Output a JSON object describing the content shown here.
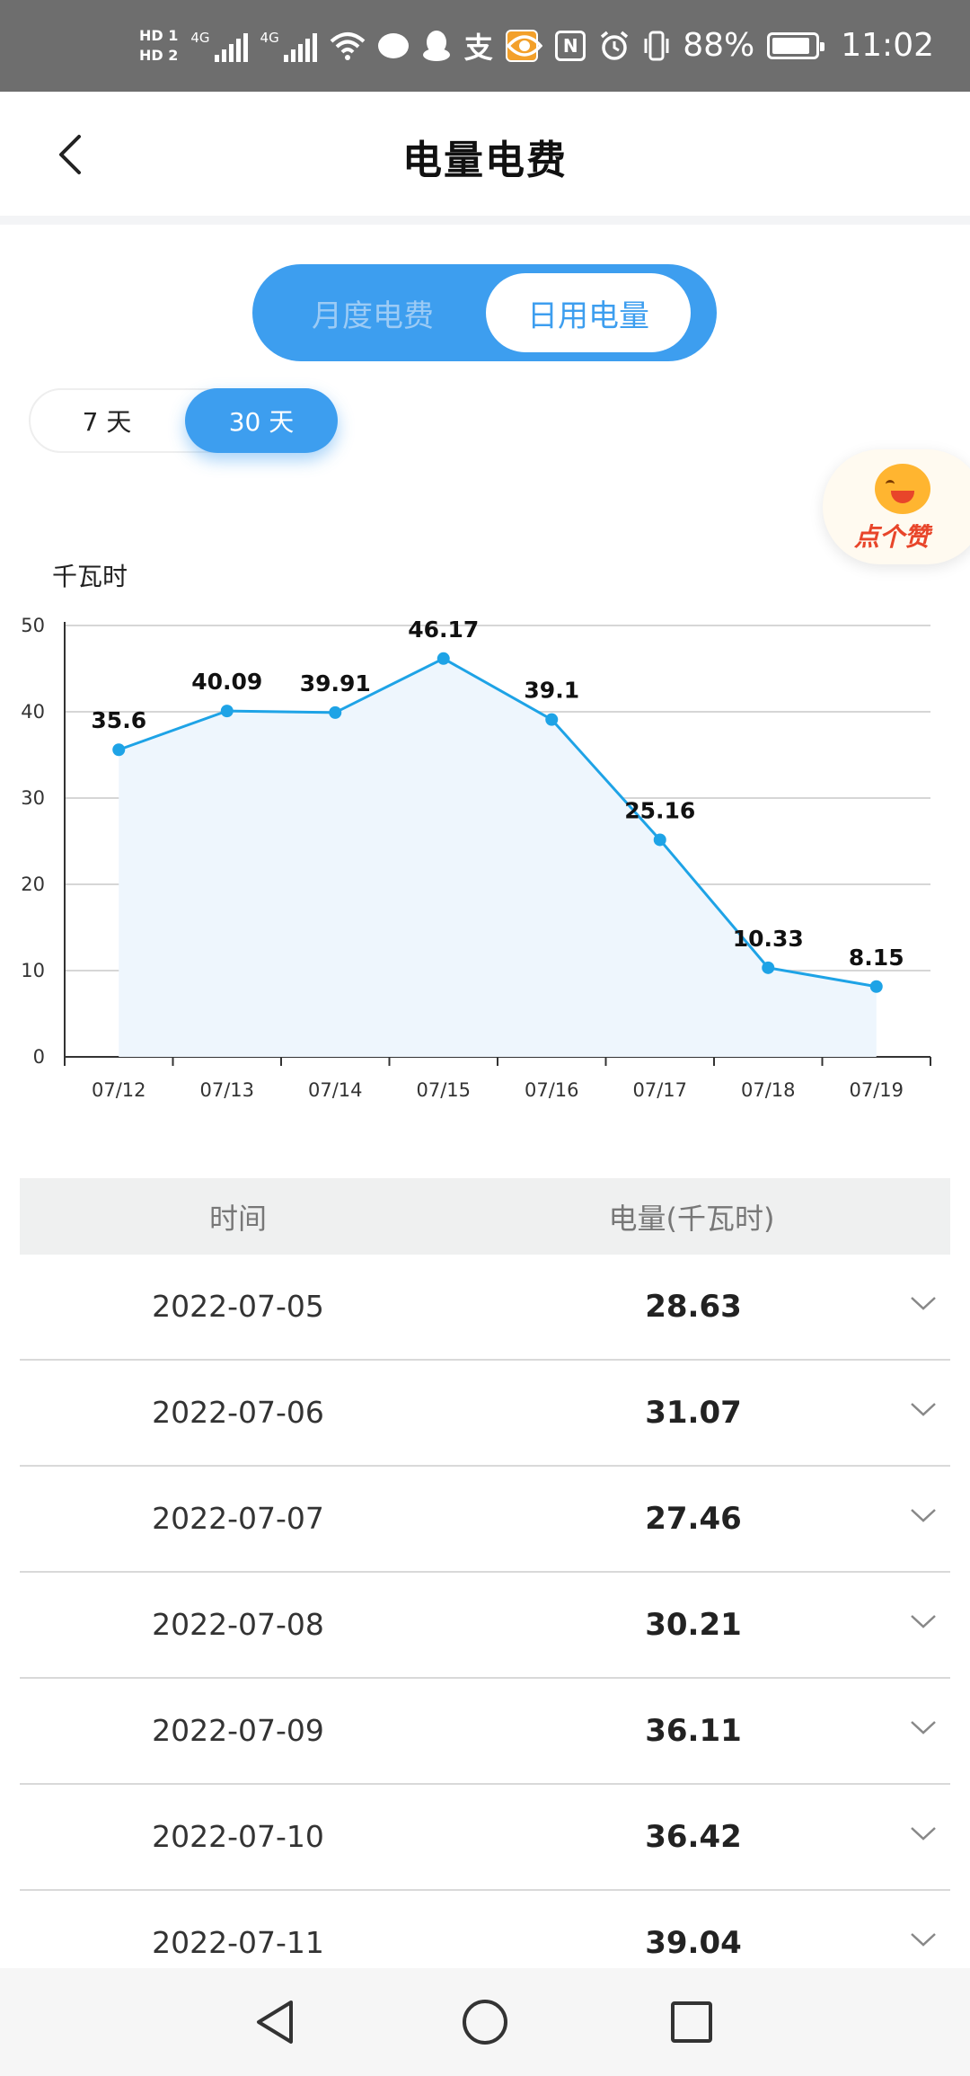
{
  "status_bar": {
    "hd1": "HD 1",
    "hd2": "HD 2",
    "net1": "4G",
    "net2": "4G",
    "alipay_icon": "支",
    "nfc_icon": "N",
    "battery": "88%",
    "time": "11:02"
  },
  "header": {
    "title": "电量电费"
  },
  "main_tabs": [
    {
      "label": "月度电费",
      "active": false
    },
    {
      "label": "日用电量",
      "active": true
    }
  ],
  "range_options": [
    {
      "label": "7 天",
      "active": false
    },
    {
      "label": "30 天",
      "active": true
    }
  ],
  "like_badge": {
    "text": "点个赞"
  },
  "colors": {
    "accent": "#3d9eef",
    "line": "#1ea3e6",
    "area": "#eef6fd",
    "grid": "#d6d6d6"
  },
  "chart_data": {
    "type": "line",
    "ylabel": "千瓦时",
    "categories": [
      "07/12",
      "07/13",
      "07/14",
      "07/15",
      "07/16",
      "07/17",
      "07/18",
      "07/19"
    ],
    "values": [
      35.6,
      40.09,
      39.91,
      46.17,
      39.1,
      25.16,
      10.33,
      8.15
    ],
    "value_labels": [
      "35.6",
      "40.09",
      "39.91",
      "46.17",
      "39.1",
      "25.16",
      "10.33",
      "8.15"
    ],
    "ylim": [
      0,
      50
    ],
    "yticks": [
      "0",
      "10",
      "20",
      "30",
      "40",
      "50"
    ],
    "grid": true,
    "legend": "none"
  },
  "table": {
    "headers": {
      "date": "时间",
      "value": "电量(千瓦时)"
    },
    "rows": [
      {
        "date": "2022-07-05",
        "value": "28.63"
      },
      {
        "date": "2022-07-06",
        "value": "31.07"
      },
      {
        "date": "2022-07-07",
        "value": "27.46"
      },
      {
        "date": "2022-07-08",
        "value": "30.21"
      },
      {
        "date": "2022-07-09",
        "value": "36.11"
      },
      {
        "date": "2022-07-10",
        "value": "36.42"
      },
      {
        "date": "2022-07-11",
        "value": "39.04"
      }
    ]
  },
  "nav_bar": {
    "icons": [
      "back-triangle-icon",
      "home-circle-icon",
      "recents-square-icon"
    ]
  }
}
